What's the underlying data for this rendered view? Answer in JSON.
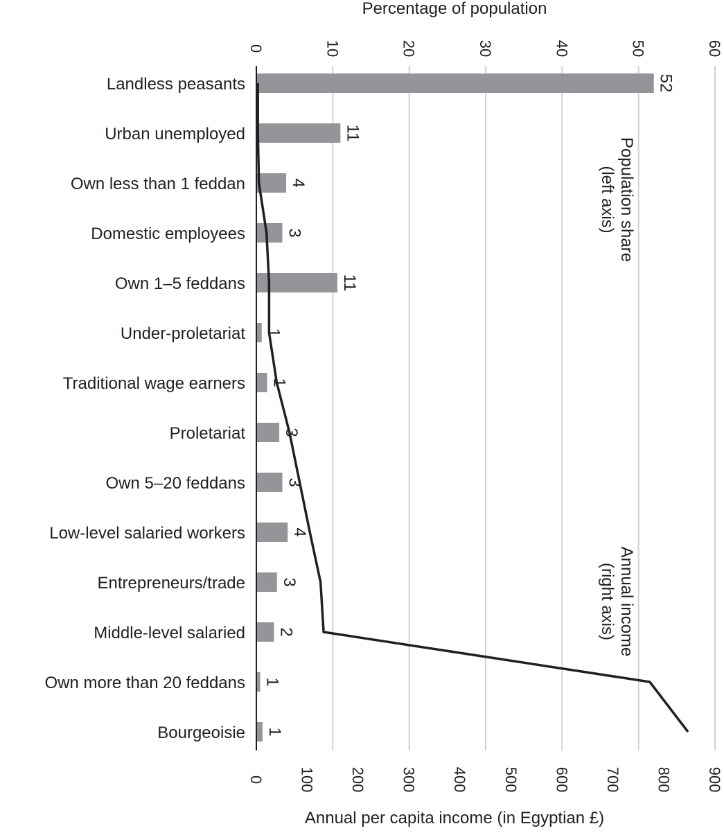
{
  "chart_data": {
    "type": "bar",
    "orientation": "rotated",
    "categories": [
      "Landless peasants",
      "Urban unemployed",
      "Own less than 1 feddan",
      "Domestic employees",
      "Own 1–5 feddans",
      "Under-proletariat",
      "Traditional wage earners",
      "Proletariat",
      "Own 5–20 feddans",
      "Low-level salaried workers",
      "Entrepreneurs/trade",
      "Middle-level salaried",
      "Own more than 20 feddans",
      "Bourgeoisie"
    ],
    "series": [
      {
        "name": "Population share",
        "axis": "left",
        "type": "bar",
        "color": "#939598",
        "values": [
          52,
          11,
          3.9,
          3.4,
          10.6,
          0.7,
          1.4,
          3,
          3.4,
          4.1,
          2.7,
          2.3,
          0.5,
          0.8
        ],
        "labels": [
          "52",
          "11",
          "4",
          "3",
          "11",
          "1",
          "1",
          "3",
          "3",
          "4",
          "3",
          "2",
          "1",
          "1"
        ]
      },
      {
        "name": "Annual income",
        "axis": "right",
        "type": "line",
        "color": "#231f20",
        "values": [
          3,
          3,
          5,
          20,
          25,
          25,
          40,
          65,
          85,
          105,
          126,
          132,
          772,
          847
        ]
      }
    ],
    "title": "Percentage of population",
    "ylabel_left": "Percentage of population",
    "ylabel_right": "Annual per capita income (in Egyptian £)",
    "left_axis": {
      "range": [
        0,
        60
      ],
      "ticks": [
        "0",
        "10",
        "20",
        "30",
        "40",
        "50",
        "60"
      ]
    },
    "right_axis": {
      "range": [
        0,
        900
      ],
      "ticks": [
        "0",
        "100",
        "200",
        "300",
        "400",
        "500",
        "600",
        "700",
        "800",
        "900"
      ]
    },
    "annotations": [
      {
        "lines": [
          "Population share",
          "(left axis)"
        ]
      },
      {
        "lines": [
          "Annual income",
          "(right axis)"
        ]
      }
    ],
    "grid": true
  }
}
